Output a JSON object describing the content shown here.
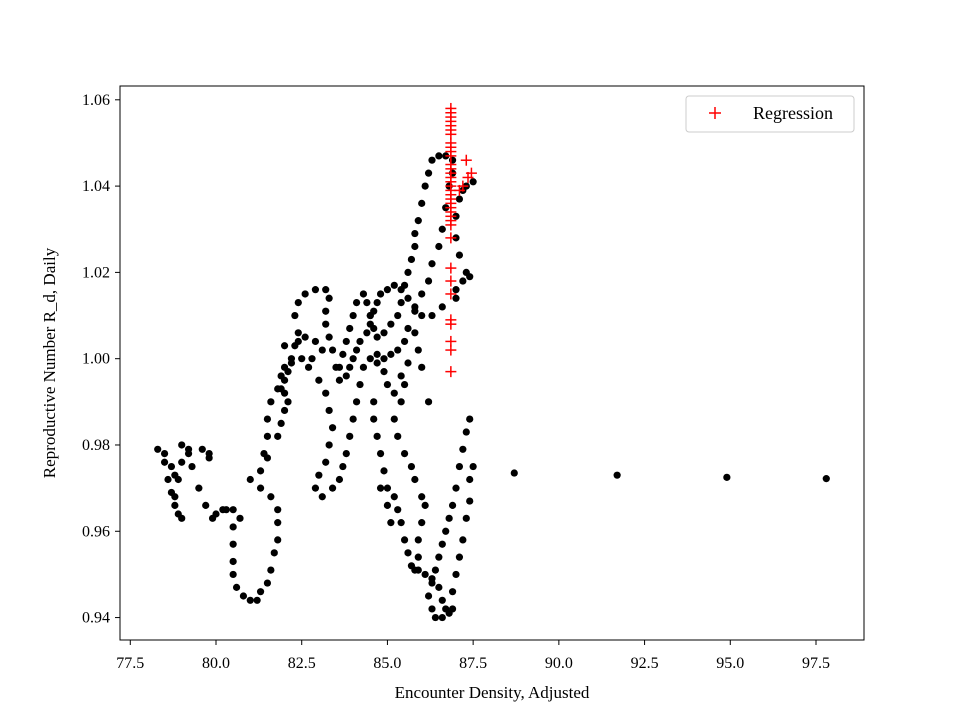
{
  "chart_data": {
    "type": "scatter",
    "title": "",
    "xlabel": "Encounter Density, Adjusted",
    "ylabel": "Reproductive Number R_d, Daily",
    "xlim": [
      77.2,
      98.9
    ],
    "ylim": [
      0.9348,
      1.0632
    ],
    "xticks": [
      77.5,
      80.0,
      82.5,
      85.0,
      87.5,
      90.0,
      92.5,
      95.0,
      97.5
    ],
    "xtick_labels": [
      "77.5",
      "80.0",
      "82.5",
      "85.0",
      "87.5",
      "90.0",
      "92.5",
      "95.0",
      "97.5"
    ],
    "yticks": [
      0.94,
      0.96,
      0.98,
      1.0,
      1.02,
      1.04,
      1.06
    ],
    "ytick_labels": [
      "0.94",
      "0.96",
      "0.98",
      "1.00",
      "1.02",
      "1.04",
      "1.06"
    ],
    "grid": false,
    "legend": {
      "position": "top-right",
      "entries": [
        {
          "label": "Regression",
          "marker": "+",
          "color": "#ff0000"
        }
      ]
    },
    "series": [
      {
        "marker": "circle",
        "color": "#000000",
        "points": [
          [
            87.5,
            1.041
          ],
          [
            87.3,
            1.04
          ],
          [
            87.2,
            1.039
          ],
          [
            87.1,
            1.037
          ],
          [
            87.0,
            1.033
          ],
          [
            87.0,
            1.028
          ],
          [
            87.1,
            1.024
          ],
          [
            87.3,
            1.02
          ],
          [
            87.4,
            1.019
          ],
          [
            87.2,
            1.018
          ],
          [
            87.0,
            1.016
          ],
          [
            87.0,
            1.014
          ],
          [
            86.6,
            1.012
          ],
          [
            86.3,
            1.01
          ],
          [
            86.0,
            1.01
          ],
          [
            85.8,
            1.012
          ],
          [
            85.6,
            1.014
          ],
          [
            85.4,
            1.016
          ],
          [
            85.2,
            1.017
          ],
          [
            85.0,
            1.016
          ],
          [
            84.8,
            1.015
          ],
          [
            84.7,
            1.013
          ],
          [
            84.6,
            1.011
          ],
          [
            84.5,
            1.01
          ],
          [
            84.5,
            1.008
          ],
          [
            84.4,
            1.006
          ],
          [
            84.2,
            1.004
          ],
          [
            84.1,
            1.002
          ],
          [
            84.0,
            1.0
          ],
          [
            83.9,
            0.998
          ],
          [
            83.8,
            0.996
          ],
          [
            83.6,
            0.995
          ],
          [
            83.5,
            0.998
          ],
          [
            83.4,
            1.002
          ],
          [
            83.3,
            1.005
          ],
          [
            83.2,
            1.008
          ],
          [
            83.2,
            1.011
          ],
          [
            83.3,
            1.014
          ],
          [
            83.2,
            1.016
          ],
          [
            82.9,
            1.016
          ],
          [
            82.6,
            1.015
          ],
          [
            82.4,
            1.013
          ],
          [
            82.3,
            1.01
          ],
          [
            82.4,
            1.006
          ],
          [
            82.3,
            1.003
          ],
          [
            82.2,
            1.0
          ],
          [
            82.0,
            0.998
          ],
          [
            81.9,
            0.996
          ],
          [
            81.8,
            0.993
          ],
          [
            81.6,
            0.99
          ],
          [
            81.5,
            0.986
          ],
          [
            81.5,
            0.982
          ],
          [
            81.4,
            0.978
          ],
          [
            81.3,
            0.974
          ],
          [
            81.0,
            0.972
          ],
          [
            81.3,
            0.97
          ],
          [
            81.6,
            0.968
          ],
          [
            81.8,
            0.965
          ],
          [
            81.8,
            0.962
          ],
          [
            81.8,
            0.958
          ],
          [
            81.7,
            0.955
          ],
          [
            81.6,
            0.951
          ],
          [
            81.5,
            0.948
          ],
          [
            81.3,
            0.946
          ],
          [
            81.2,
            0.944
          ],
          [
            81.0,
            0.944
          ],
          [
            80.8,
            0.945
          ],
          [
            80.6,
            0.947
          ],
          [
            80.5,
            0.95
          ],
          [
            80.5,
            0.953
          ],
          [
            80.5,
            0.957
          ],
          [
            80.5,
            0.961
          ],
          [
            80.5,
            0.965
          ],
          [
            80.3,
            0.965
          ],
          [
            80.0,
            0.964
          ],
          [
            79.9,
            0.963
          ],
          [
            79.7,
            0.966
          ],
          [
            79.5,
            0.97
          ],
          [
            79.3,
            0.975
          ],
          [
            79.2,
            0.978
          ],
          [
            79.0,
            0.98
          ],
          [
            79.0,
            0.976
          ],
          [
            78.9,
            0.972
          ],
          [
            78.8,
            0.968
          ],
          [
            78.9,
            0.964
          ],
          [
            79.0,
            0.963
          ],
          [
            78.8,
            0.966
          ],
          [
            78.7,
            0.969
          ],
          [
            78.6,
            0.972
          ],
          [
            78.5,
            0.976
          ],
          [
            78.3,
            0.979
          ],
          [
            78.5,
            0.978
          ],
          [
            78.7,
            0.975
          ],
          [
            78.8,
            0.973
          ],
          [
            79.2,
            0.979
          ],
          [
            79.6,
            0.979
          ],
          [
            79.8,
            0.977
          ],
          [
            79.8,
            0.978
          ],
          [
            80.2,
            0.965
          ],
          [
            80.7,
            0.963
          ],
          [
            81.5,
            0.977
          ],
          [
            81.8,
            0.982
          ],
          [
            81.9,
            0.985
          ],
          [
            82.0,
            0.988
          ],
          [
            82.1,
            0.99
          ],
          [
            82.0,
            0.992
          ],
          [
            81.9,
            0.993
          ],
          [
            82.0,
            0.995
          ],
          [
            82.1,
            0.997
          ],
          [
            82.2,
            0.999
          ],
          [
            82.0,
            1.003
          ],
          [
            82.4,
            1.004
          ],
          [
            82.6,
            1.005
          ],
          [
            82.9,
            1.004
          ],
          [
            83.1,
            1.002
          ],
          [
            82.8,
            1.0
          ],
          [
            82.5,
            1.0
          ],
          [
            82.7,
            0.998
          ],
          [
            83.0,
            0.995
          ],
          [
            83.2,
            0.992
          ],
          [
            83.3,
            0.988
          ],
          [
            83.4,
            0.984
          ],
          [
            83.3,
            0.98
          ],
          [
            83.2,
            0.976
          ],
          [
            83.0,
            0.973
          ],
          [
            82.9,
            0.97
          ],
          [
            83.1,
            0.968
          ],
          [
            83.4,
            0.97
          ],
          [
            83.6,
            0.972
          ],
          [
            83.7,
            0.975
          ],
          [
            83.8,
            0.978
          ],
          [
            83.9,
            0.982
          ],
          [
            84.0,
            0.986
          ],
          [
            84.1,
            0.99
          ],
          [
            84.2,
            0.994
          ],
          [
            84.3,
            0.998
          ],
          [
            84.5,
            1.0
          ],
          [
            84.7,
            1.001
          ],
          [
            84.9,
            1.0
          ],
          [
            85.1,
            1.001
          ],
          [
            85.3,
            1.002
          ],
          [
            85.5,
            1.004
          ],
          [
            85.6,
            1.007
          ],
          [
            85.8,
            1.011
          ],
          [
            86.0,
            1.015
          ],
          [
            86.2,
            1.018
          ],
          [
            86.3,
            1.022
          ],
          [
            86.5,
            1.026
          ],
          [
            86.6,
            1.03
          ],
          [
            86.7,
            1.035
          ],
          [
            86.8,
            1.04
          ],
          [
            86.9,
            1.043
          ],
          [
            86.9,
            1.046
          ],
          [
            86.7,
            1.047
          ],
          [
            86.5,
            1.047
          ],
          [
            86.3,
            1.046
          ],
          [
            86.2,
            1.043
          ],
          [
            86.1,
            1.04
          ],
          [
            86.0,
            1.036
          ],
          [
            85.9,
            1.032
          ],
          [
            85.8,
            1.029
          ],
          [
            85.8,
            1.026
          ],
          [
            85.7,
            1.023
          ],
          [
            85.6,
            1.02
          ],
          [
            85.5,
            1.017
          ],
          [
            85.4,
            1.013
          ],
          [
            85.3,
            1.01
          ],
          [
            85.1,
            1.008
          ],
          [
            84.9,
            1.006
          ],
          [
            84.7,
            1.005
          ],
          [
            84.6,
            1.007
          ],
          [
            84.5,
            1.01
          ],
          [
            84.4,
            1.013
          ],
          [
            84.3,
            1.015
          ],
          [
            84.1,
            1.013
          ],
          [
            84.0,
            1.01
          ],
          [
            83.9,
            1.007
          ],
          [
            83.8,
            1.004
          ],
          [
            83.7,
            1.001
          ],
          [
            83.6,
            0.998
          ],
          [
            84.6,
            0.99
          ],
          [
            84.6,
            0.986
          ],
          [
            84.7,
            0.982
          ],
          [
            84.8,
            0.978
          ],
          [
            84.9,
            0.974
          ],
          [
            85.0,
            0.97
          ],
          [
            85.2,
            0.968
          ],
          [
            85.3,
            0.965
          ],
          [
            85.4,
            0.962
          ],
          [
            85.5,
            0.958
          ],
          [
            85.6,
            0.955
          ],
          [
            85.7,
            0.952
          ],
          [
            85.9,
            0.951
          ],
          [
            86.1,
            0.95
          ],
          [
            86.3,
            0.949
          ],
          [
            86.5,
            0.947
          ],
          [
            86.6,
            0.944
          ],
          [
            86.7,
            0.942
          ],
          [
            86.8,
            0.941
          ],
          [
            86.6,
            0.94
          ],
          [
            86.4,
            0.94
          ],
          [
            86.3,
            0.942
          ],
          [
            86.2,
            0.945
          ],
          [
            86.3,
            0.948
          ],
          [
            86.4,
            0.951
          ],
          [
            86.5,
            0.954
          ],
          [
            86.6,
            0.957
          ],
          [
            86.7,
            0.96
          ],
          [
            86.8,
            0.963
          ],
          [
            86.9,
            0.966
          ],
          [
            87.0,
            0.97
          ],
          [
            87.1,
            0.975
          ],
          [
            87.2,
            0.979
          ],
          [
            87.3,
            0.983
          ],
          [
            87.4,
            0.986
          ],
          [
            87.4,
            0.972
          ],
          [
            87.5,
            0.975
          ],
          [
            87.4,
            0.967
          ],
          [
            87.3,
            0.963
          ],
          [
            87.2,
            0.958
          ],
          [
            87.1,
            0.954
          ],
          [
            87.0,
            0.95
          ],
          [
            86.9,
            0.946
          ],
          [
            86.9,
            0.942
          ],
          [
            86.2,
            0.99
          ],
          [
            86.0,
            0.998
          ],
          [
            85.8,
            1.006
          ],
          [
            85.5,
            0.994
          ],
          [
            85.4,
            0.99
          ],
          [
            85.2,
            0.986
          ],
          [
            85.3,
            0.982
          ],
          [
            85.5,
            0.978
          ],
          [
            85.7,
            0.975
          ],
          [
            85.8,
            0.972
          ],
          [
            86.0,
            0.968
          ],
          [
            86.1,
            0.966
          ],
          [
            86.0,
            0.962
          ],
          [
            85.9,
            0.958
          ],
          [
            85.9,
            0.954
          ],
          [
            85.8,
            0.951
          ],
          [
            84.8,
            0.97
          ],
          [
            85.0,
            0.966
          ],
          [
            85.1,
            0.962
          ],
          [
            84.7,
            0.999
          ],
          [
            84.9,
            0.997
          ],
          [
            85.0,
            0.994
          ],
          [
            85.2,
            0.992
          ],
          [
            85.4,
            0.996
          ],
          [
            85.6,
            0.999
          ],
          [
            85.9,
            1.002
          ],
          [
            88.7,
            0.9735
          ],
          [
            91.7,
            0.973
          ],
          [
            94.9,
            0.9725
          ],
          [
            97.8,
            0.9722
          ]
        ]
      },
      {
        "name": "Regression",
        "marker": "+",
        "color": "#ff0000",
        "points": [
          [
            86.85,
            1.058
          ],
          [
            86.85,
            1.057
          ],
          [
            86.85,
            1.056
          ],
          [
            86.85,
            1.055
          ],
          [
            86.85,
            1.054
          ],
          [
            86.85,
            1.053
          ],
          [
            86.85,
            1.052
          ],
          [
            86.85,
            1.05
          ],
          [
            86.85,
            1.049
          ],
          [
            86.85,
            1.048
          ],
          [
            86.85,
            1.047
          ],
          [
            86.85,
            1.045
          ],
          [
            86.85,
            1.044
          ],
          [
            86.85,
            1.043
          ],
          [
            86.85,
            1.042
          ],
          [
            86.85,
            1.041
          ],
          [
            86.85,
            1.04
          ],
          [
            86.85,
            1.039
          ],
          [
            86.85,
            1.038
          ],
          [
            86.85,
            1.037
          ],
          [
            86.85,
            1.036
          ],
          [
            86.85,
            1.035
          ],
          [
            86.85,
            1.034
          ],
          [
            86.85,
            1.033
          ],
          [
            86.85,
            1.032
          ],
          [
            86.85,
            1.031
          ],
          [
            86.85,
            1.028
          ],
          [
            86.85,
            1.021
          ],
          [
            86.85,
            1.018
          ],
          [
            86.85,
            1.015
          ],
          [
            86.85,
            1.009
          ],
          [
            86.85,
            1.008
          ],
          [
            86.85,
            1.004
          ],
          [
            86.85,
            1.002
          ],
          [
            86.85,
            0.997
          ],
          [
            87.3,
            1.046
          ],
          [
            87.35,
            1.042
          ],
          [
            87.45,
            1.043
          ],
          [
            87.2,
            1.04
          ],
          [
            87.1,
            1.039
          ]
        ]
      }
    ]
  }
}
